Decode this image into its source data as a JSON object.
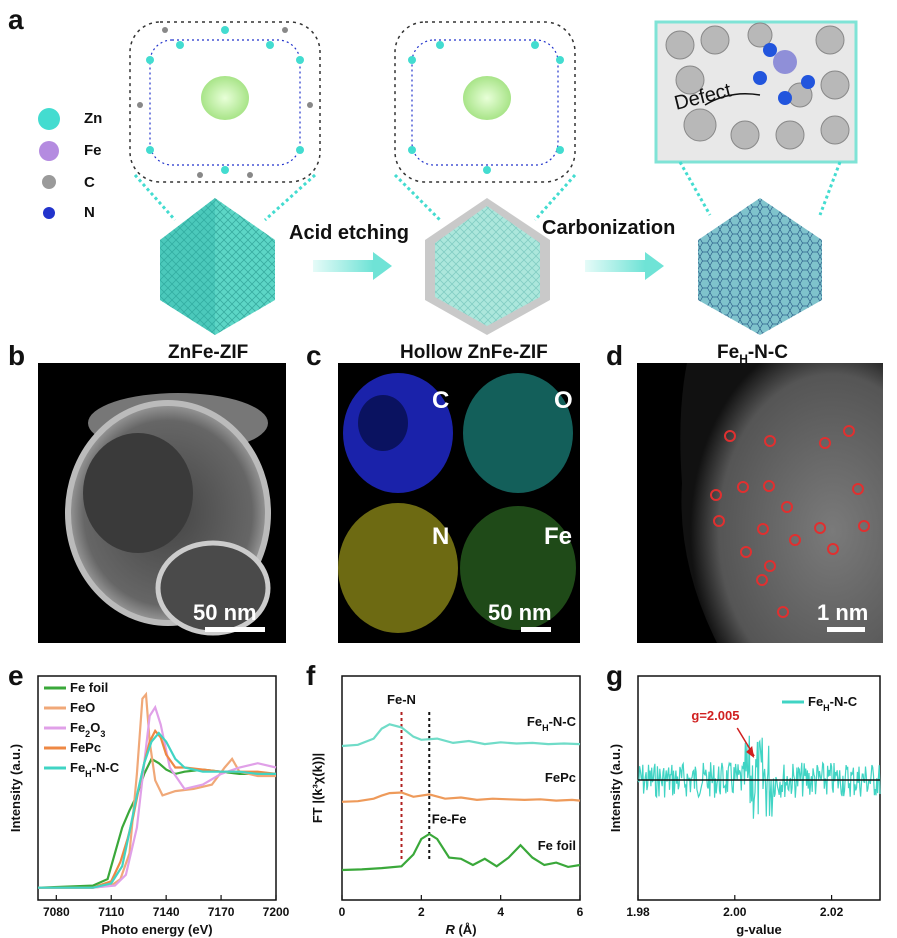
{
  "panel_labels": [
    "a",
    "b",
    "c",
    "d",
    "e",
    "f",
    "g"
  ],
  "legend": [
    {
      "label": "Zn",
      "color": "#43dcd0"
    },
    {
      "label": "Fe",
      "color": "#b48be0"
    },
    {
      "label": "C",
      "color": "#9a9a9a"
    },
    {
      "label": "N",
      "color": "#2233cc"
    }
  ],
  "schematic": {
    "stage1": "ZnFe-ZIF",
    "stage2": "Hollow ZnFe-ZIF",
    "stage3_main": "Fe",
    "stage3_sub": "H",
    "stage3_tail": "-N-C",
    "step1": "Acid etching",
    "step2": "Carbonization",
    "defect": "Defect"
  },
  "microscopy": {
    "b_scale": "50 nm",
    "c_scale": "50 nm",
    "c_maps": [
      "C",
      "O",
      "N",
      "Fe"
    ],
    "d_scale": "1 nm"
  },
  "chart_data": [
    {
      "panel": "e",
      "type": "line",
      "xlabel": "Photo energy (eV)",
      "ylabel": "Intensity (a.u.)",
      "xlim": [
        7070,
        7200
      ],
      "xticks": [
        "7080",
        "7110",
        "7140",
        "7170",
        "7200"
      ],
      "legend_placement": "top-left",
      "series": [
        {
          "name": "Fe foil",
          "color": "#3aa83a",
          "x": [
            7070,
            7100,
            7108,
            7112,
            7116,
            7120,
            7124,
            7128,
            7132,
            7136,
            7140,
            7145,
            7150,
            7160,
            7170,
            7180,
            7190,
            7200
          ],
          "y": [
            0.02,
            0.03,
            0.06,
            0.18,
            0.3,
            0.38,
            0.45,
            0.55,
            0.62,
            0.6,
            0.57,
            0.55,
            0.56,
            0.57,
            0.56,
            0.55,
            0.55,
            0.55
          ]
        },
        {
          "name": "FeO",
          "color": "#f0a878",
          "x": [
            7070,
            7100,
            7110,
            7115,
            7120,
            7124,
            7127,
            7129,
            7131,
            7134,
            7138,
            7145,
            7155,
            7165,
            7172,
            7176,
            7180,
            7190,
            7200
          ],
          "y": [
            0.02,
            0.02,
            0.03,
            0.06,
            0.18,
            0.55,
            0.9,
            0.92,
            0.7,
            0.52,
            0.45,
            0.47,
            0.48,
            0.5,
            0.58,
            0.62,
            0.56,
            0.54,
            0.54
          ]
        },
        {
          "name": "Fe2O3",
          "color": "#e0a0e8",
          "x": [
            7070,
            7100,
            7112,
            7118,
            7124,
            7128,
            7131,
            7134,
            7137,
            7142,
            7150,
            7160,
            7170,
            7180,
            7190,
            7200
          ],
          "y": [
            0.02,
            0.02,
            0.03,
            0.08,
            0.3,
            0.6,
            0.82,
            0.86,
            0.78,
            0.58,
            0.48,
            0.5,
            0.55,
            0.58,
            0.6,
            0.58
          ]
        },
        {
          "name": "FePc",
          "color": "#ee8844",
          "x": [
            7070,
            7100,
            7110,
            7115,
            7119,
            7122,
            7125,
            7128,
            7131,
            7134,
            7137,
            7140,
            7145,
            7150,
            7160,
            7170,
            7180,
            7190,
            7200
          ],
          "y": [
            0.02,
            0.02,
            0.05,
            0.14,
            0.25,
            0.35,
            0.48,
            0.6,
            0.7,
            0.75,
            0.72,
            0.64,
            0.58,
            0.58,
            0.57,
            0.56,
            0.56,
            0.56,
            0.55
          ]
        },
        {
          "name": "FeH-N-C",
          "color": "#40d4c4",
          "x": [
            7070,
            7100,
            7110,
            7116,
            7120,
            7124,
            7128,
            7132,
            7136,
            7140,
            7145,
            7150,
            7160,
            7170,
            7180,
            7190,
            7200
          ],
          "y": [
            0.02,
            0.02,
            0.04,
            0.12,
            0.28,
            0.45,
            0.6,
            0.7,
            0.74,
            0.7,
            0.62,
            0.58,
            0.56,
            0.56,
            0.56,
            0.55,
            0.55
          ]
        }
      ]
    },
    {
      "panel": "f",
      "type": "line",
      "xlabel": "R (Å)",
      "ylabel": "FT |(k³χ(k))|",
      "xlim": [
        0,
        6
      ],
      "xticks": [
        "0",
        "2",
        "4",
        "6"
      ],
      "annotations": [
        "Fe-N",
        "Fe-Fe"
      ],
      "vlines": [
        1.5,
        2.2
      ],
      "series": [
        {
          "name": "FeH-N-C",
          "color": "#70dcc8",
          "offset": 2.0,
          "x": [
            0,
            0.4,
            0.8,
            1.0,
            1.2,
            1.5,
            1.8,
            2.0,
            2.4,
            2.8,
            3.2,
            3.6,
            4.0,
            4.4,
            4.8,
            5.2,
            5.6,
            6.0
          ],
          "y": [
            0.0,
            0.02,
            0.12,
            0.28,
            0.35,
            0.3,
            0.15,
            0.1,
            0.12,
            0.05,
            0.08,
            0.03,
            0.06,
            0.04,
            0.05,
            0.03,
            0.04,
            0.03
          ]
        },
        {
          "name": "FePc",
          "color": "#ee9a5a",
          "offset": 1.1,
          "x": [
            0,
            0.4,
            0.8,
            1.0,
            1.2,
            1.5,
            1.8,
            2.2,
            2.6,
            3.0,
            3.4,
            3.8,
            4.2,
            4.6,
            5.0,
            5.4,
            5.8,
            6.0
          ],
          "y": [
            0.0,
            0.01,
            0.05,
            0.1,
            0.14,
            0.15,
            0.08,
            0.12,
            0.05,
            0.07,
            0.03,
            0.05,
            0.04,
            0.03,
            0.04,
            0.02,
            0.03,
            0.02
          ]
        },
        {
          "name": "Fe foil",
          "color": "#3aa83a",
          "offset": 0.0,
          "x": [
            0,
            0.5,
            1.0,
            1.5,
            1.8,
            2.0,
            2.2,
            2.4,
            2.7,
            3.0,
            3.3,
            3.6,
            3.9,
            4.2,
            4.5,
            4.8,
            5.1,
            5.4,
            5.7,
            6.0
          ],
          "y": [
            0.0,
            0.01,
            0.03,
            0.06,
            0.25,
            0.5,
            0.58,
            0.5,
            0.2,
            0.18,
            0.08,
            0.18,
            0.06,
            0.2,
            0.4,
            0.2,
            0.08,
            0.12,
            0.05,
            0.08
          ]
        }
      ]
    },
    {
      "panel": "g",
      "type": "line",
      "xlabel": "g-value",
      "ylabel": "Intensity (a.u.)",
      "xlim": [
        1.98,
        2.03
      ],
      "xticks": [
        "1.98",
        "2.00",
        "2.02"
      ],
      "legend_placement": "top-right",
      "annotation": "g=2.005",
      "series": [
        {
          "name": "FeH-N-C",
          "color": "#40d4c4"
        }
      ]
    }
  ]
}
